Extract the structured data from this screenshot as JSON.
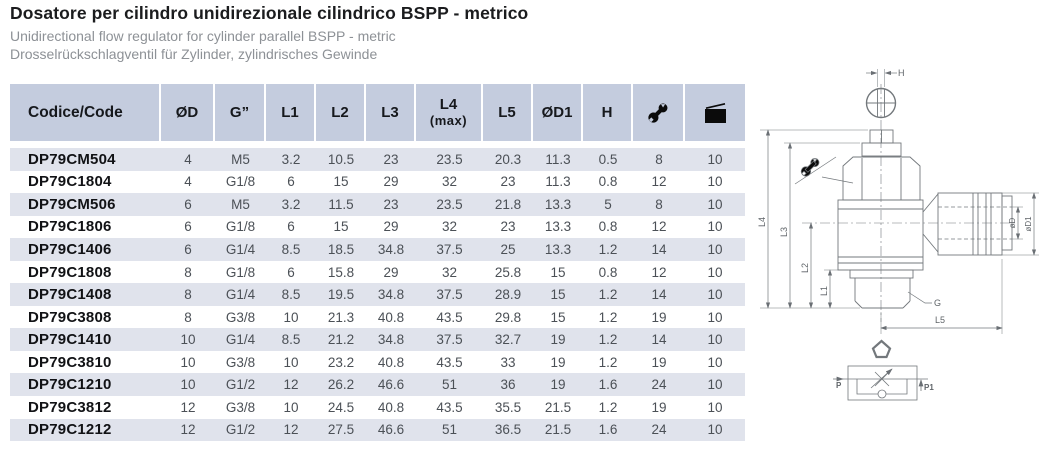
{
  "page": {
    "title": "Dosatore per cilindro unidirezionale cilindrico BSPP - metrico",
    "subtitle_en": "Unidirectional flow regulator for cylinder parallel BSPP - metric",
    "subtitle_de": "Drosselrückschlagventil für Zylinder, zylindrisches Gewinde"
  },
  "colors": {
    "header_bg": "#c4ccde",
    "stripe_bg": "#e0e3ec",
    "title_text": "#1b1c1e",
    "subtitle_text": "#8d9196",
    "value_text": "#4b5056",
    "drawing_stroke": "#73787c"
  },
  "table": {
    "columns": [
      {
        "key": "code",
        "label": "Codice/Code"
      },
      {
        "key": "od",
        "label": "ØD"
      },
      {
        "key": "g",
        "label": "G”"
      },
      {
        "key": "l1",
        "label": "L1"
      },
      {
        "key": "l2",
        "label": "L2"
      },
      {
        "key": "l3",
        "label": "L3"
      },
      {
        "key": "l4",
        "label": "L4",
        "label2": "(max)"
      },
      {
        "key": "l5",
        "label": "L5"
      },
      {
        "key": "od1",
        "label": "ØD1"
      },
      {
        "key": "h",
        "label": "H"
      },
      {
        "key": "wrench",
        "icon": "wrench-icon"
      },
      {
        "key": "package",
        "icon": "package-icon"
      }
    ],
    "rows": [
      [
        "DP79CM504",
        "4",
        "M5",
        "3.2",
        "10.5",
        "23",
        "23.5",
        "20.3",
        "11.3",
        "0.5",
        "8",
        "10"
      ],
      [
        "DP79C1804",
        "4",
        "G1/8",
        "6",
        "15",
        "29",
        "32",
        "23",
        "11.3",
        "0.8",
        "12",
        "10"
      ],
      [
        "DP79CM506",
        "6",
        "M5",
        "3.2",
        "11.5",
        "23",
        "23.5",
        "21.8",
        "13.3",
        "5",
        "8",
        "10"
      ],
      [
        "DP79C1806",
        "6",
        "G1/8",
        "6",
        "15",
        "29",
        "32",
        "23",
        "13.3",
        "0.8",
        "12",
        "10"
      ],
      [
        "DP79C1406",
        "6",
        "G1/4",
        "8.5",
        "18.5",
        "34.8",
        "37.5",
        "25",
        "13.3",
        "1.2",
        "14",
        "10"
      ],
      [
        "DP79C1808",
        "8",
        "G1/8",
        "6",
        "15.8",
        "29",
        "32",
        "25.8",
        "15",
        "0.8",
        "12",
        "10"
      ],
      [
        "DP79C1408",
        "8",
        "G1/4",
        "8.5",
        "19.5",
        "34.8",
        "37.5",
        "28.9",
        "15",
        "1.2",
        "14",
        "10"
      ],
      [
        "DP79C3808",
        "8",
        "G3/8",
        "10",
        "21.3",
        "40.8",
        "43.5",
        "29.8",
        "15",
        "1.2",
        "19",
        "10"
      ],
      [
        "DP79C1410",
        "10",
        "G1/4",
        "8.5",
        "21.2",
        "34.8",
        "37.5",
        "32.7",
        "19",
        "1.2",
        "14",
        "10"
      ],
      [
        "DP79C3810",
        "10",
        "G3/8",
        "10",
        "23.2",
        "40.8",
        "43.5",
        "33",
        "19",
        "1.2",
        "19",
        "10"
      ],
      [
        "DP79C1210",
        "10",
        "G1/2",
        "12",
        "26.2",
        "46.6",
        "51",
        "36",
        "19",
        "1.6",
        "24",
        "10"
      ],
      [
        "DP79C3812",
        "12",
        "G3/8",
        "10",
        "24.5",
        "40.8",
        "43.5",
        "35.5",
        "21.5",
        "1.2",
        "19",
        "10"
      ],
      [
        "DP79C1212",
        "12",
        "G1/2",
        "12",
        "27.5",
        "46.6",
        "51",
        "36.5",
        "21.5",
        "1.6",
        "24",
        "10"
      ]
    ]
  },
  "drawing": {
    "labels": {
      "h": "H",
      "l1": "L1",
      "l2": "L2",
      "l3": "L3",
      "l4": "L4",
      "l5": "L5",
      "d": "øD",
      "d1": "øD1",
      "g": "G",
      "p": "P",
      "p1": "P1"
    }
  }
}
